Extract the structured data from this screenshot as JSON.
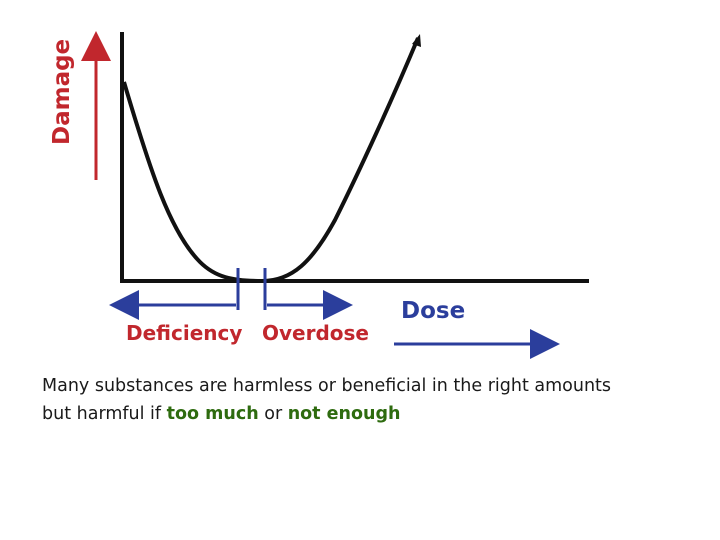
{
  "labels": {
    "damage": "Damage",
    "deficiency": "Deficiency",
    "overdose": "Overdose",
    "dose": "Dose"
  },
  "caption": {
    "line1": "Many substances are harmless or beneficial in the right amounts",
    "line2_prefix": "but harmful if ",
    "too_much": "too much",
    "or_text": " or ",
    "not_enough": "not enough"
  },
  "colors": {
    "damage_label": "#c1272d",
    "damage_arrow": "#c1272d",
    "deficiency_label": "#c1272d",
    "overdose_label": "#c1272d",
    "dose_label": "#2b3e9c",
    "blue_arrows": "#2b3e9c",
    "curve": "#111111",
    "axes": "#111111",
    "emphasis": "#2e6b0f"
  }
}
